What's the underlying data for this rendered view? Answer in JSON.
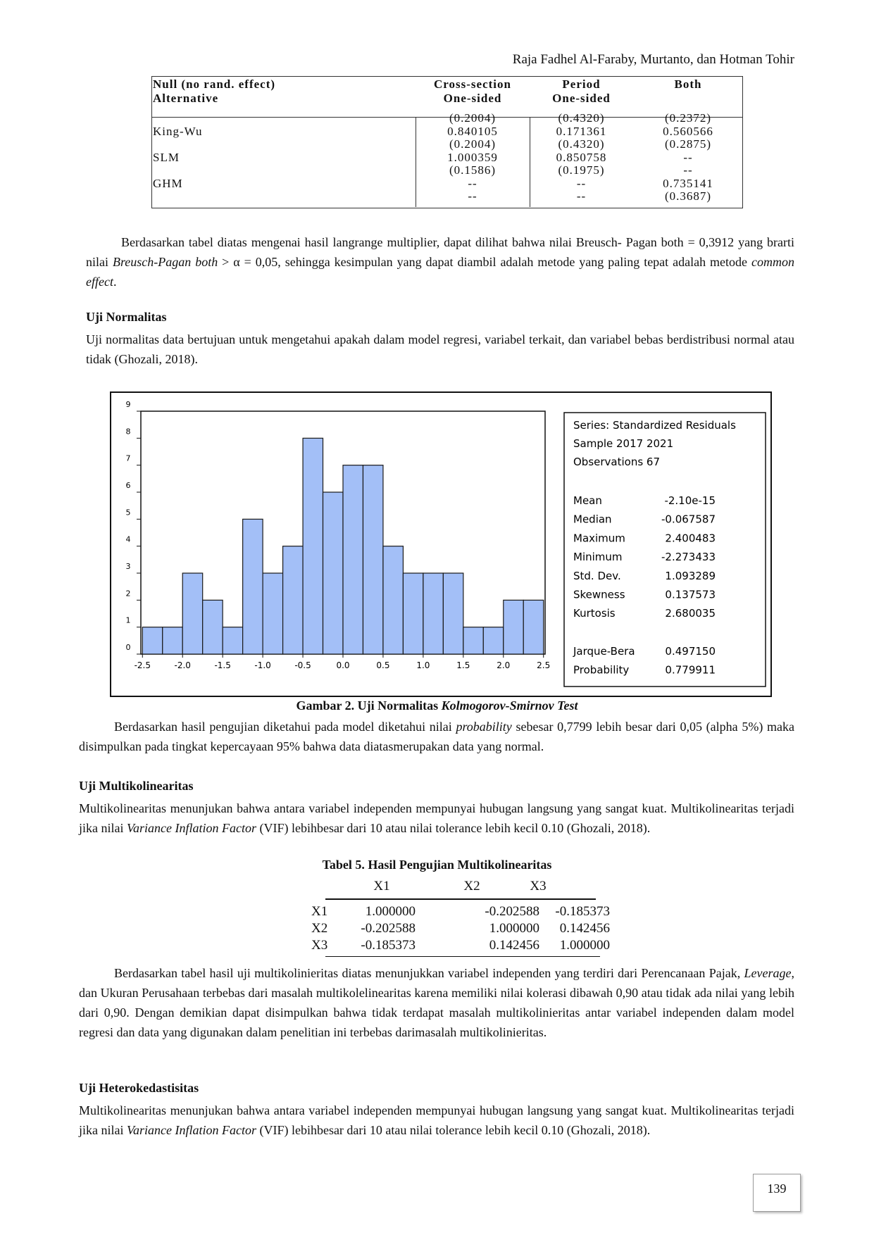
{
  "running_header": "Raja Fadhel Al-Faraby, Murtanto, dan Hotman Tohir",
  "table4": {
    "header": [
      [
        "Null (no rand. effect)",
        "Alternative"
      ],
      [
        "Cross-section",
        "One-sided"
      ],
      [
        "Period",
        "One-sided"
      ],
      [
        "Both"
      ]
    ],
    "rows": [
      {
        "cells": [
          "(0.2004)",
          "(0.4320)",
          "(0.2372)"
        ]
      },
      {
        "label": "King-Wu",
        "cells": [
          "0.840105",
          "0.171361",
          "0.560566"
        ]
      },
      {
        "cells": [
          "(0.2004)",
          "(0.4320)",
          "(0.2875)"
        ]
      },
      {
        "label": "SLM",
        "cells": [
          "1.000359",
          "0.850758",
          "--"
        ]
      },
      {
        "cells": [
          "(0.1586)",
          "(0.1975)",
          "--"
        ]
      },
      {
        "label": "GHM",
        "cells": [
          "--",
          "--",
          "0.735141"
        ]
      },
      {
        "cells": [
          "--",
          "--",
          "(0.3687)"
        ]
      }
    ]
  },
  "paragraph1": [
    {
      "text": "Berdasarkan tabel diatas mengenai hasil langrange multiplier, dapat dilihat bahwa nilai Breusch- Pagan both = 0,3912 yang brarti nilai "
    },
    {
      "text": "Breusch-Pagan both",
      "italic": true
    },
    {
      "text": " > α = 0,05, sehingga kesimpulan yang dapat diambil adalah metode yang paling tepat adalah metode "
    },
    {
      "text": "common effect",
      "italic": true
    },
    {
      "text": "."
    }
  ],
  "heading1": "Uji Normalitas",
  "paragraph2": [
    {
      "text": "Uji normalitas data bertujuan untuk mengetahui apakah dalam model regresi, variabel terkait, dan variabel bebas berdistribusi normal atau tidak (Ghozali, 2018)."
    }
  ],
  "chart_data": {
    "type": "histogram",
    "color": "#a3bff7",
    "edge_color": "#1a1a1a",
    "bins": [
      -2.5,
      -2.25,
      -2.0,
      -1.75,
      -1.5,
      -1.25,
      -1.0,
      -0.75,
      -0.5,
      -0.25,
      0,
      0.25,
      0.5,
      0.75,
      1.0,
      1.25,
      1.5,
      1.75,
      2.0,
      2.25,
      2.5
    ],
    "values": [
      1,
      1,
      3,
      2,
      1,
      5,
      3,
      4,
      8,
      6,
      7,
      7,
      4,
      3,
      3,
      3,
      1,
      1,
      2,
      2
    ],
    "xlim": [
      -2.52,
      2.52
    ],
    "ylim": [
      0,
      9
    ],
    "xticks": [
      -2.5,
      {
        "value": -2,
        "label": "-2.0"
      },
      -1.5,
      {
        "value": -1,
        "label": "-1.0"
      },
      -0.5,
      {
        "value": 0,
        "label": "0.0"
      },
      0.5,
      {
        "value": 1,
        "label": "1.0"
      },
      1.5,
      {
        "value": 2,
        "label": "2.0"
      },
      2.5
    ],
    "yticks": [
      0,
      1,
      2,
      3,
      4,
      5,
      6,
      7,
      8,
      9
    ]
  },
  "figure_stats": {
    "header": [
      "Series: Standardized Residuals",
      "Sample 2017 2021",
      "Observations 67"
    ],
    "moments": [
      {
        "label": "Mean",
        "value": "-2.10e-15"
      },
      {
        "label": "Median",
        "value": "-0.067587"
      },
      {
        "label": "Maximum",
        "value": "2.400483"
      },
      {
        "label": "Minimum",
        "value": "-2.273433"
      },
      {
        "label": "Std. Dev.",
        "value": "1.093289"
      },
      {
        "label": "Skewness",
        "value": "0.137573"
      },
      {
        "label": "Kurtosis",
        "value": "2.680035"
      }
    ],
    "tests": [
      {
        "label": "Jarque-Bera",
        "value": "0.497150"
      },
      {
        "label": "Probability",
        "value": "0.779911"
      }
    ]
  },
  "caption": [
    {
      "text": "Gambar 2. Uji Normalitas "
    },
    {
      "text": "Kolmogorov-Smirnov Test",
      "italic": true
    }
  ],
  "paragraph3": [
    {
      "text": "Berdasarkan hasil pengujian diketahui pada model diketahui nilai "
    },
    {
      "text": "probability",
      "italic": true
    },
    {
      "text": " sebesar 0,7799 lebih besar dari 0,05 (alpha 5%) maka disimpulkan pada tingkat kepercayaan 95% bahwa data diatasmerupakan data yang normal."
    }
  ],
  "heading2": "Uji Multikolinearitas",
  "paragraph4": [
    {
      "text": "Multikolinearitas menunjukan bahwa antara variabel independen mempunyai hubugan langsung yang sangat kuat. Multikolinearitas terjadi jika nilai "
    },
    {
      "text": "Variance Inflation Factor",
      "italic": true
    },
    {
      "text": " (VIF) lebihbesar dari 10 atau nilai tolerance lebih kecil 0.10 (Ghozali, 2018)."
    }
  ],
  "table5": {
    "title": "Tabel 5. Hasil Pengujian Multikolinearitas",
    "header": [
      "X1",
      "X2",
      "X3"
    ],
    "rows": [
      {
        "label": "X1",
        "cells": [
          "1.000000",
          "-0.202588",
          "-0.185373"
        ]
      },
      {
        "label": "X2",
        "cells": [
          "-0.202588",
          "1.000000",
          "0.142456"
        ]
      },
      {
        "label": "X3",
        "cells": [
          "-0.185373",
          "0.142456",
          "1.000000"
        ]
      }
    ]
  },
  "paragraph5": [
    {
      "text": "Berdasarkan tabel hasil uji multikolinieritas diatas menunjukkan variabel independen yang terdiri dari Perencanaan Pajak, "
    },
    {
      "text": "Leverage",
      "italic": true
    },
    {
      "text": ", dan Ukuran Perusahaan terbebas dari masalah multikolelinearitas karena memiliki nilai kolerasi dibawah 0,90 atau tidak ada nilai yang lebih dari 0,90. Dengan demikian dapat disimpulkan bahwa tidak terdapat masalah multikolinieritas antar variabel independen dalam model regresi dan data yang digunakan dalam penelitian ini terbebas darimasalah multikolinieritas."
    }
  ],
  "heading3": "Uji Heterokedastisitas",
  "paragraph6": [
    {
      "text": "Multikolinearitas menunjukan bahwa antara variabel independen mempunyai hubugan langsung yang sangat kuat. Multikolinearitas terjadi jika nilai "
    },
    {
      "text": "Variance Inflation Factor",
      "italic": true
    },
    {
      "text": " (VIF) lebihbesar dari 10 atau nilai tolerance lebih kecil 0.10 (Ghozali, 2018)."
    }
  ],
  "page_number": "139"
}
